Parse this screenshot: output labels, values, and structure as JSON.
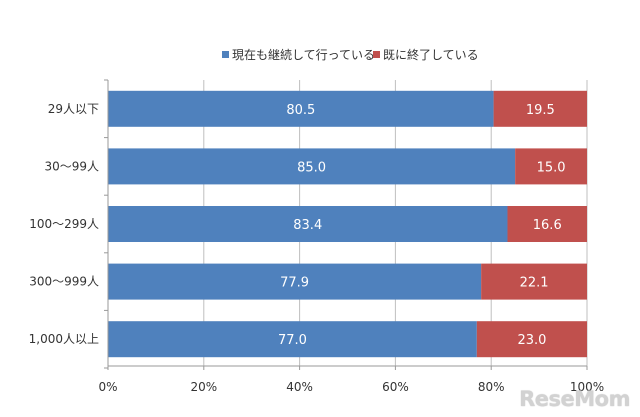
{
  "legend": {
    "series1": "現在も継続して行っている",
    "series2": "既に終了している"
  },
  "watermark": "ReseMom",
  "colors": {
    "series1": "#4F81BD",
    "series2": "#C0504D",
    "axis": "#999999",
    "grid": "#bfbfbf",
    "bar_label": "#ffffff"
  },
  "chart_data": {
    "type": "bar",
    "orientation": "horizontal",
    "stacked": true,
    "categories": [
      "29人以下",
      "30～99人",
      "100～299人",
      "300～999人",
      "1,000人以上"
    ],
    "series": [
      {
        "name": "現在も継続して行っている",
        "values": [
          80.5,
          85.0,
          83.4,
          77.9,
          77.0
        ],
        "labels": [
          "80.5",
          "85.0",
          "83.4",
          "77.9",
          "77.0"
        ]
      },
      {
        "name": "既に終了している",
        "values": [
          19.5,
          15.0,
          16.6,
          22.1,
          23.0
        ],
        "labels": [
          "19.5",
          "15.0",
          "16.6",
          "22.1",
          "23.0"
        ]
      }
    ],
    "xlim": [
      0,
      100
    ],
    "xticks": [
      0,
      20,
      40,
      60,
      80,
      100
    ],
    "xtick_labels": [
      "0%",
      "20%",
      "40%",
      "60%",
      "80%",
      "100%"
    ],
    "legend_position": "top",
    "grid": "vertical"
  }
}
